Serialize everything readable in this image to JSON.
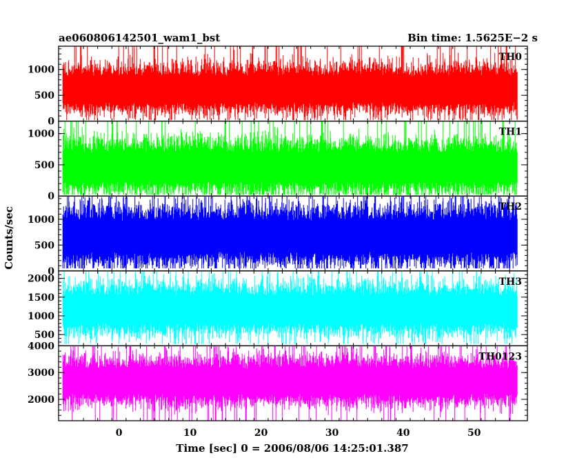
{
  "chart_data": {
    "type": "line",
    "title_left": "ae060806142501_wam1_bst",
    "title_right": "Bin time: 1.5625E−2 s",
    "xlabel": "Time [sec] 0 = 2006/08/06 14:25:01.387",
    "ylabel": "Counts/sec",
    "xlim": [
      -8.5,
      57.5
    ],
    "x_data_range": [
      -7.9,
      56.1
    ],
    "x_ticks": [
      0,
      10,
      20,
      30,
      40,
      50
    ],
    "x_tick_labels": [
      "0",
      "10",
      "20",
      "30",
      "40",
      "50"
    ],
    "grid": false,
    "panels": [
      {
        "name": "TH0",
        "color": "#ff0000",
        "ylim": [
          0,
          1450
        ],
        "y_ticks": [
          0,
          500,
          1000
        ],
        "y_tick_labels": [
          "0",
          "500",
          "1000"
        ],
        "band": {
          "mean": 600,
          "spread": 230,
          "min": 20,
          "max": 1450
        }
      },
      {
        "name": "TH1",
        "color": "#00ff00",
        "ylim": [
          0,
          1200
        ],
        "y_ticks": [
          0,
          500,
          1000
        ],
        "y_tick_labels": [
          "0",
          "500",
          "1000"
        ],
        "band": {
          "mean": 450,
          "spread": 210,
          "min": 20,
          "max": 1200
        }
      },
      {
        "name": "TH2",
        "color": "#0000ff",
        "ylim": [
          0,
          1450
        ],
        "y_ticks": [
          0,
          500,
          1000
        ],
        "y_tick_labels": [
          "0",
          "500",
          "1000"
        ],
        "band": {
          "mean": 650,
          "spread": 280,
          "min": 50,
          "max": 1450
        }
      },
      {
        "name": "TH3",
        "color": "#00ffff",
        "ylim": [
          200,
          2200
        ],
        "y_ticks": [
          500,
          1000,
          1500,
          2000
        ],
        "y_tick_labels": [
          "500",
          "1000",
          "1500",
          "2000"
        ],
        "band": {
          "mean": 1150,
          "spread": 330,
          "min": 250,
          "max": 2200
        }
      },
      {
        "name": "TH0123",
        "color": "#ff00ff",
        "ylim": [
          1200,
          4000
        ],
        "y_ticks": [
          2000,
          3000,
          4000
        ],
        "y_tick_labels": [
          "2000",
          "3000",
          "4000"
        ],
        "band": {
          "mean": 2650,
          "spread": 430,
          "min": 1200,
          "max": 4000
        }
      }
    ]
  }
}
